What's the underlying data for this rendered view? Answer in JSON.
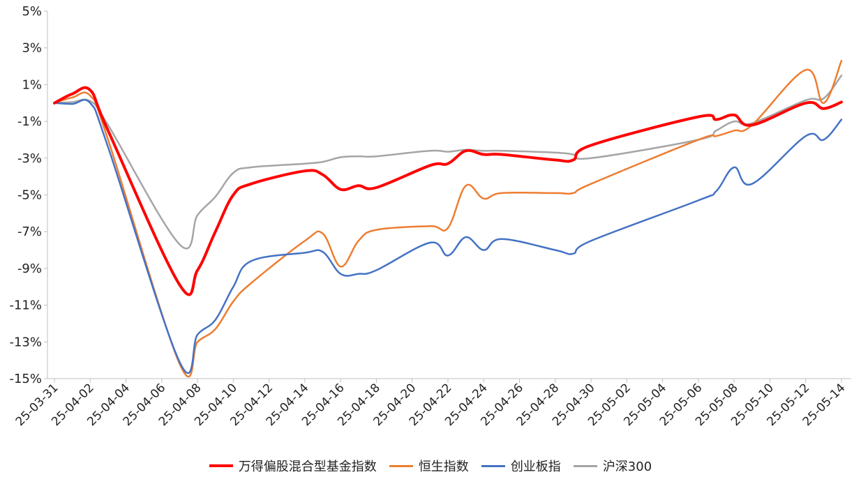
{
  "chart_data": {
    "type": "line",
    "x": [
      "25-03-31",
      "25-04-01",
      "25-04-02",
      "25-04-03",
      "25-04-07",
      "25-04-08",
      "25-04-09",
      "25-04-10",
      "25-04-11",
      "25-04-14",
      "25-04-15",
      "25-04-16",
      "25-04-17",
      "25-04-18",
      "25-04-21",
      "25-04-22",
      "25-04-23",
      "25-04-24",
      "25-04-25",
      "25-04-28",
      "25-04-29",
      "25-04-30",
      "25-05-06",
      "25-05-07",
      "25-05-08",
      "25-05-09",
      "25-05-12",
      "25-05-13",
      "25-05-14"
    ],
    "x_ticks": [
      "25-03-31",
      "25-04-02",
      "25-04-04",
      "25-04-06",
      "25-04-08",
      "25-04-10",
      "25-04-12",
      "25-04-14",
      "25-04-16",
      "25-04-18",
      "25-04-20",
      "25-04-22",
      "25-04-24",
      "25-04-26",
      "25-04-28",
      "25-04-30",
      "25-05-02",
      "25-05-04",
      "25-05-06",
      "25-05-08",
      "25-05-10",
      "25-05-12",
      "25-05-14"
    ],
    "y_ticks": [
      "5%",
      "3%",
      "1%",
      "-1%",
      "-3%",
      "-5%",
      "-7%",
      "-9%",
      "-11%",
      "-13%",
      "-15%"
    ],
    "ylim": [
      -15,
      5
    ],
    "ylabel": "",
    "xlabel": "",
    "title": "",
    "legend_position": "bottom",
    "series": [
      {
        "name": "万得偏股混合型基金指数",
        "color": "#ff0000",
        "width": 4,
        "values": [
          0,
          0.5,
          0.7,
          -1.5,
          -9.9,
          -9.1,
          -7.0,
          -5.0,
          -4.4,
          -3.7,
          -3.9,
          -4.7,
          -4.5,
          -4.6,
          -3.4,
          -3.3,
          -2.6,
          -2.8,
          -2.8,
          -3.1,
          -3.1,
          -2.3,
          -0.75,
          -0.9,
          -0.65,
          -1.2,
          0,
          -0.3,
          0.05
        ]
      },
      {
        "name": "恒生指数",
        "color": "#ed7d31",
        "width": 2.5,
        "values": [
          0,
          0.3,
          0.4,
          -2.0,
          -14.2,
          -13.0,
          -12.3,
          -10.8,
          -9.8,
          -7.5,
          -7.1,
          -8.9,
          -7.5,
          -6.9,
          -6.7,
          -6.8,
          -4.5,
          -5.2,
          -4.9,
          -4.9,
          -4.9,
          -4.4,
          -2.0,
          -1.8,
          -1.5,
          -1.2,
          1.8,
          0,
          2.3
        ]
      },
      {
        "name": "创业板指",
        "color": "#4472c4",
        "width": 2.5,
        "values": [
          0,
          -0.05,
          0,
          -2.4,
          -14.1,
          -12.6,
          -11.8,
          -10.0,
          -8.6,
          -8.15,
          -8.1,
          -9.3,
          -9.3,
          -9.1,
          -7.6,
          -8.3,
          -7.3,
          -8.0,
          -7.4,
          -8.0,
          -8.2,
          -7.5,
          -5.3,
          -4.8,
          -3.5,
          -4.4,
          -1.8,
          -2.0,
          -0.9
        ]
      },
      {
        "name": "沪深300",
        "color": "#a5a5a5",
        "width": 2.5,
        "values": [
          0,
          0.05,
          0.1,
          -1.2,
          -7.7,
          -6.1,
          -5.1,
          -3.8,
          -3.5,
          -3.3,
          -3.2,
          -2.95,
          -2.9,
          -2.9,
          -2.6,
          -2.65,
          -2.55,
          -2.6,
          -2.6,
          -2.7,
          -2.8,
          -3.0,
          -2.0,
          -1.5,
          -1.0,
          -1.1,
          0.15,
          0.25,
          1.5
        ]
      }
    ]
  }
}
